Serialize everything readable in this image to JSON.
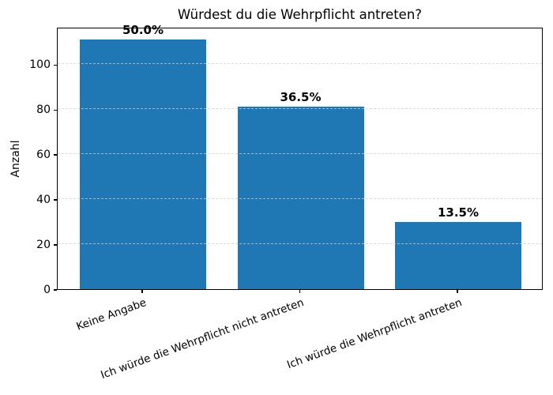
{
  "chart_data": {
    "type": "bar",
    "title": "Würdest du die Wehrpflicht antreten?",
    "xlabel": "",
    "ylabel": "Anzahl",
    "categories": [
      "Keine Angabe",
      "Ich würde die Wehrpflicht nicht antreten",
      "Ich würde die Wehrpflicht antreten"
    ],
    "values": [
      111,
      81,
      30
    ],
    "bar_labels": [
      "50.0%",
      "36.5%",
      "13.5%"
    ],
    "yticks": [
      0,
      20,
      40,
      60,
      80,
      100
    ],
    "ylim": [
      0,
      116.6
    ],
    "bar_color": "#1f77b4",
    "grid": "horizontal-dashed",
    "legend": "none",
    "x_label_rotation_deg": 20
  }
}
